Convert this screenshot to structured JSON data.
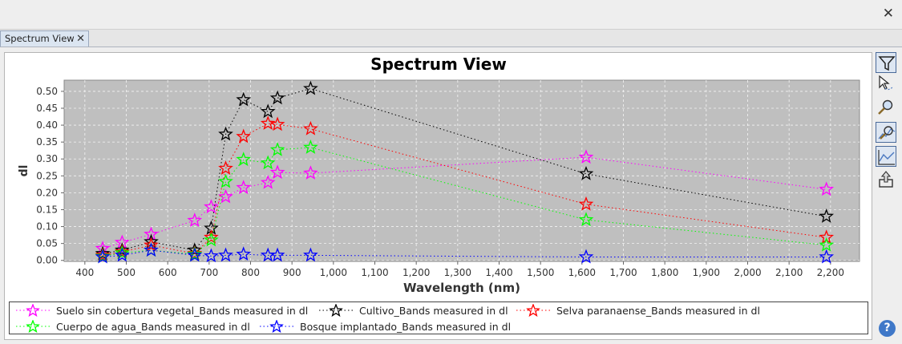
{
  "window": {
    "close_icon": "close-icon"
  },
  "tab": {
    "label": "Spectrum View"
  },
  "chart_data": {
    "type": "line",
    "title": "Spectrum View",
    "xlabel": "Wavelength (nm)",
    "ylabel": "dl",
    "xlim": [
      350,
      2270
    ],
    "ylim": [
      -0.003,
      0.533
    ],
    "xticks": [
      400,
      500,
      600,
      700,
      800,
      900,
      1000,
      1100,
      1200,
      1300,
      1400,
      1500,
      1600,
      1700,
      1800,
      1900,
      2000,
      2100,
      2200
    ],
    "xtick_labels": [
      "400",
      "500",
      "600",
      "700",
      "800",
      "900",
      "1,000",
      "1,100",
      "1,200",
      "1,300",
      "1,400",
      "1,500",
      "1,600",
      "1,700",
      "1,800",
      "1,900",
      "2,000",
      "2,100",
      "2,200"
    ],
    "yticks": [
      0,
      0.05,
      0.1,
      0.15,
      0.2,
      0.25,
      0.3,
      0.35,
      0.4,
      0.45,
      0.5
    ],
    "ytick_labels": [
      "0.00",
      "0.05",
      "0.10",
      "0.15",
      "0.20",
      "0.25",
      "0.30",
      "0.35",
      "0.40",
      "0.45",
      "0.50"
    ],
    "grid": true,
    "legend_position": "bottom",
    "x": [
      443,
      490,
      560,
      665,
      705,
      740,
      783,
      842,
      865,
      945,
      1610,
      2190
    ],
    "series": [
      {
        "name": "Suelo sin cobertura vegetal_Bands measured in dl",
        "color": "#ff00ff",
        "values": [
          0.035,
          0.053,
          0.077,
          0.118,
          0.158,
          0.188,
          0.215,
          0.23,
          0.26,
          0.258,
          0.305,
          0.21
        ]
      },
      {
        "name": "Cultivo_Bands measured in dl",
        "color": "#000000",
        "values": [
          0.02,
          0.03,
          0.055,
          0.03,
          0.095,
          0.373,
          0.475,
          0.44,
          0.48,
          0.508,
          0.256,
          0.13
        ]
      },
      {
        "name": "Selva paranaense_Bands measured in dl",
        "color": "#ff0000",
        "values": [
          0.015,
          0.025,
          0.045,
          0.02,
          0.068,
          0.272,
          0.366,
          0.405,
          0.402,
          0.389,
          0.166,
          0.068
        ]
      },
      {
        "name": "Cuerpo de agua_Bands measured in dl",
        "color": "#00ff00",
        "values": [
          0.012,
          0.022,
          0.03,
          0.018,
          0.06,
          0.233,
          0.298,
          0.288,
          0.327,
          0.334,
          0.12,
          0.045
        ]
      },
      {
        "name": "Bosque implantado_Bands measured in dl",
        "color": "#0000ff",
        "values": [
          0.01,
          0.015,
          0.03,
          0.015,
          0.013,
          0.015,
          0.018,
          0.015,
          0.015,
          0.015,
          0.01,
          0.01
        ]
      }
    ]
  },
  "toolbar": {
    "buttons": [
      {
        "icon": "filter-icon",
        "selected": true
      },
      {
        "icon": "select-pointer-icon",
        "selected": false
      },
      {
        "icon": "zoom-in-icon",
        "selected": false
      },
      {
        "icon": "zoom-all-icon",
        "selected": true
      },
      {
        "icon": "line-chart-icon",
        "selected": true
      },
      {
        "icon": "export-icon",
        "selected": false
      }
    ],
    "help_label": "?"
  }
}
